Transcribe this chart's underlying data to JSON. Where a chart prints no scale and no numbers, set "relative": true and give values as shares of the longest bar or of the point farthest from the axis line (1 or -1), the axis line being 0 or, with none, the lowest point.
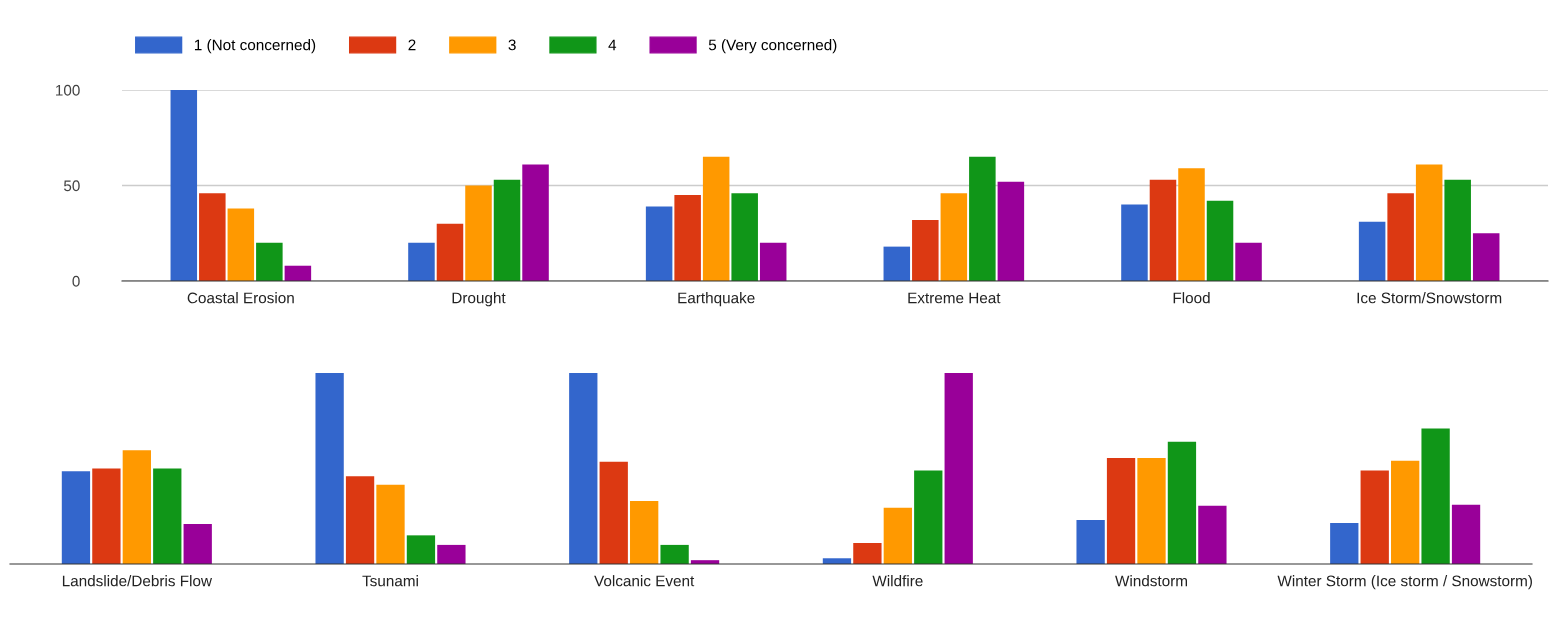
{
  "chart_data": [
    {
      "type": "bar",
      "categories": [
        "Coastal Erosion",
        "Drought",
        "Earthquake",
        "Extreme Heat",
        "Flood",
        "Ice Storm/Snowstorm"
      ],
      "ylim": [
        0,
        100
      ],
      "yticks": [
        0,
        50,
        100
      ],
      "grid": "y",
      "legend": "top",
      "series": [
        {
          "name": "1 (Not concerned)",
          "color": "#3366cc",
          "values": [
            100,
            20,
            39,
            18,
            40,
            31
          ]
        },
        {
          "name": "2",
          "color": "#dc3912",
          "values": [
            46,
            30,
            45,
            32,
            53,
            46
          ]
        },
        {
          "name": "3",
          "color": "#ff9900",
          "values": [
            38,
            50,
            65,
            46,
            59,
            61
          ]
        },
        {
          "name": "4",
          "color": "#109618",
          "values": [
            20,
            53,
            46,
            65,
            42,
            53
          ]
        },
        {
          "name": "5 (Very concerned)",
          "color": "#990099",
          "values": [
            8,
            61,
            20,
            52,
            20,
            25
          ]
        }
      ]
    },
    {
      "type": "bar",
      "categories": [
        "Landslide/Debris Flow",
        "Tsunami",
        "Volcanic Event",
        "Wildfire",
        "Windstorm",
        "Winter Storm (Ice storm / Snowstorm)"
      ],
      "relative": true,
      "tick_labels": "x",
      "series": [
        {
          "color": "#3366cc",
          "values": [
            0.485,
            1,
            1,
            0.03,
            0.23,
            0.215
          ]
        },
        {
          "color": "#dc3912",
          "values": [
            0.5,
            0.46,
            0.535,
            0.11,
            0.555,
            0.49
          ]
        },
        {
          "color": "#ff9900",
          "values": [
            0.595,
            0.415,
            0.33,
            0.295,
            0.555,
            0.54
          ]
        },
        {
          "color": "#109618",
          "values": [
            0.5,
            0.15,
            0.1,
            0.49,
            0.64,
            0.71
          ]
        },
        {
          "color": "#990099",
          "values": [
            0.21,
            0.1,
            0.02,
            1,
            0.305,
            0.31
          ]
        }
      ]
    }
  ]
}
